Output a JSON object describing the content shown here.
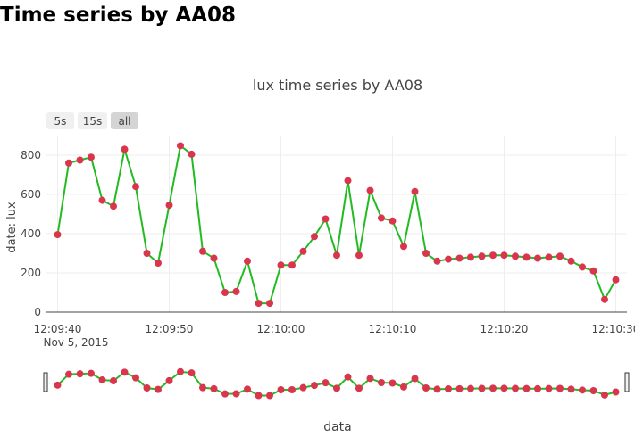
{
  "page": {
    "title": "Time series by AA08"
  },
  "controls": {
    "range_buttons": [
      "5s",
      "15s",
      "all"
    ],
    "active_button": "all"
  },
  "colors": {
    "line": "#22bb22",
    "marker": "#d9364e",
    "grid": "#eeeeee",
    "axis_line": "#444444",
    "button_bg": "#f0f0f0",
    "button_active_bg": "#d4d4d4"
  },
  "chart_data": {
    "type": "line",
    "title": "lux time series by AA08",
    "xlabel": "data",
    "ylabel": "date: lux",
    "x_date_label": "Nov 5, 2015",
    "x_ticks": [
      "12:09:40",
      "12:09:50",
      "12:10:00",
      "12:10:10",
      "12:10:20",
      "12:10:30"
    ],
    "y_ticks": [
      0,
      200,
      400,
      600,
      800
    ],
    "ylim": [
      0,
      900
    ],
    "xlim": [
      "12:09:39",
      "12:10:31"
    ],
    "grid": true,
    "range_slider": true,
    "series": [
      {
        "x": [
          "12:09:40",
          "12:09:41",
          "12:09:42",
          "12:09:43",
          "12:09:44",
          "12:09:45",
          "12:09:46",
          "12:09:47",
          "12:09:48",
          "12:09:49",
          "12:09:50",
          "12:09:51",
          "12:09:52",
          "12:09:53",
          "12:09:54",
          "12:09:55",
          "12:09:56",
          "12:09:57",
          "12:09:58",
          "12:09:59",
          "12:10:00",
          "12:10:01",
          "12:10:02",
          "12:10:03",
          "12:10:04",
          "12:10:05",
          "12:10:06",
          "12:10:07",
          "12:10:08",
          "12:10:09",
          "12:10:10",
          "12:10:11",
          "12:10:12",
          "12:10:13",
          "12:10:14",
          "12:10:15",
          "12:10:16",
          "12:10:17",
          "12:10:18",
          "12:10:19",
          "12:10:20",
          "12:10:21",
          "12:10:22",
          "12:10:23",
          "12:10:24",
          "12:10:25",
          "12:10:26",
          "12:10:27",
          "12:10:28",
          "12:10:29",
          "12:10:30"
        ],
        "y": [
          395,
          760,
          775,
          790,
          570,
          540,
          830,
          640,
          300,
          250,
          545,
          848,
          805,
          310,
          275,
          100,
          105,
          260,
          45,
          45,
          240,
          240,
          310,
          385,
          475,
          290,
          670,
          290,
          620,
          480,
          465,
          335,
          615,
          300,
          260,
          270,
          275,
          280,
          285,
          290,
          290,
          285,
          280,
          275,
          280,
          285,
          260,
          230,
          210,
          65,
          165
        ]
      }
    ]
  }
}
